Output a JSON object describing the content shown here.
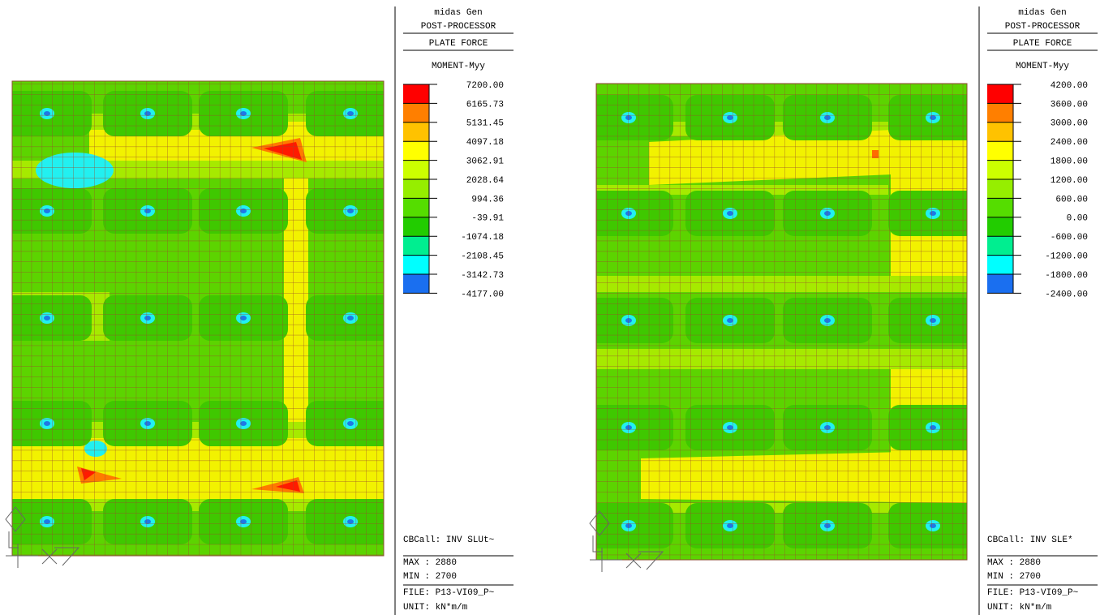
{
  "panels": [
    {
      "header": [
        "midas Gen",
        "POST-PROCESSOR",
        "PLATE FORCE",
        "MOMENT-Myy"
      ],
      "legend": [
        "7200.00",
        "6165.73",
        "5131.45",
        "4097.18",
        "3062.91",
        "2028.64",
        "994.36",
        "-39.91",
        "-1074.18",
        "-2108.45",
        "-3142.73",
        "-4177.00"
      ],
      "footer": [
        "CBCall: INV SLUt~",
        "MAX : 2880",
        "MIN : 2700",
        "FILE: P13-VI09_P~",
        "UNIT: kN*m/m"
      ]
    },
    {
      "header": [
        "midas Gen",
        "POST-PROCESSOR",
        "PLATE FORCE",
        "MOMENT-Myy"
      ],
      "legend": [
        "4200.00",
        "3600.00",
        "3000.00",
        "2400.00",
        "1800.00",
        "1200.00",
        "600.00",
        "0.00",
        "-600.00",
        "-1200.00",
        "-1800.00",
        "-2400.00"
      ],
      "footer": [
        "CBCall: INV SLE*",
        "MAX : 2880",
        "MIN : 2700",
        "FILE: P13-VI09_P~",
        "UNIT: kN*m/m"
      ]
    }
  ]
}
